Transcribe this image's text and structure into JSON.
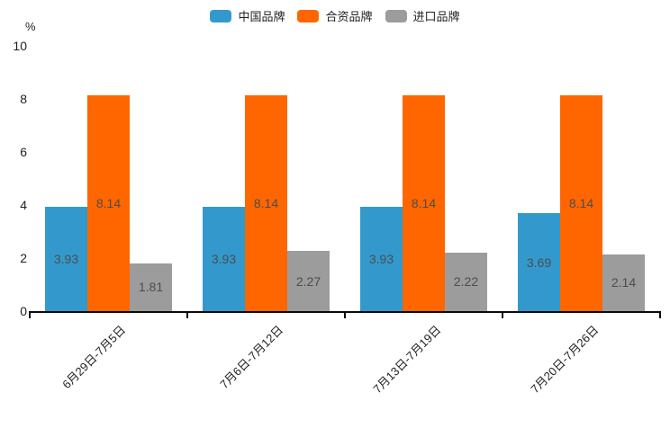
{
  "chart_data": {
    "type": "bar",
    "title": "",
    "unit_label": "%",
    "categories": [
      "6月29日-7月5日",
      "7月6日-7月12日",
      "7月13日-7月19日",
      "7月20日-7月26日"
    ],
    "series": [
      {
        "name": "中国品牌",
        "color": "#3399cc",
        "values": [
          3.93,
          3.93,
          3.93,
          3.69
        ]
      },
      {
        "name": "合资品牌",
        "color": "#ff6600",
        "values": [
          8.14,
          8.14,
          8.14,
          8.14
        ]
      },
      {
        "name": "进口品牌",
        "color": "#9c9c9c",
        "values": [
          1.81,
          2.27,
          2.22,
          2.14
        ]
      }
    ],
    "ylim": [
      0,
      10
    ],
    "yticks": [
      0,
      2,
      4,
      6,
      8,
      10
    ],
    "grid": false,
    "legend_position": "top-center",
    "value_labels": "inside-center",
    "value_label_decimals": 2
  },
  "colors": {
    "axis": "#0a0a0a",
    "tick_label": "#1f1f1f",
    "value_label": "#4d4d4d"
  }
}
